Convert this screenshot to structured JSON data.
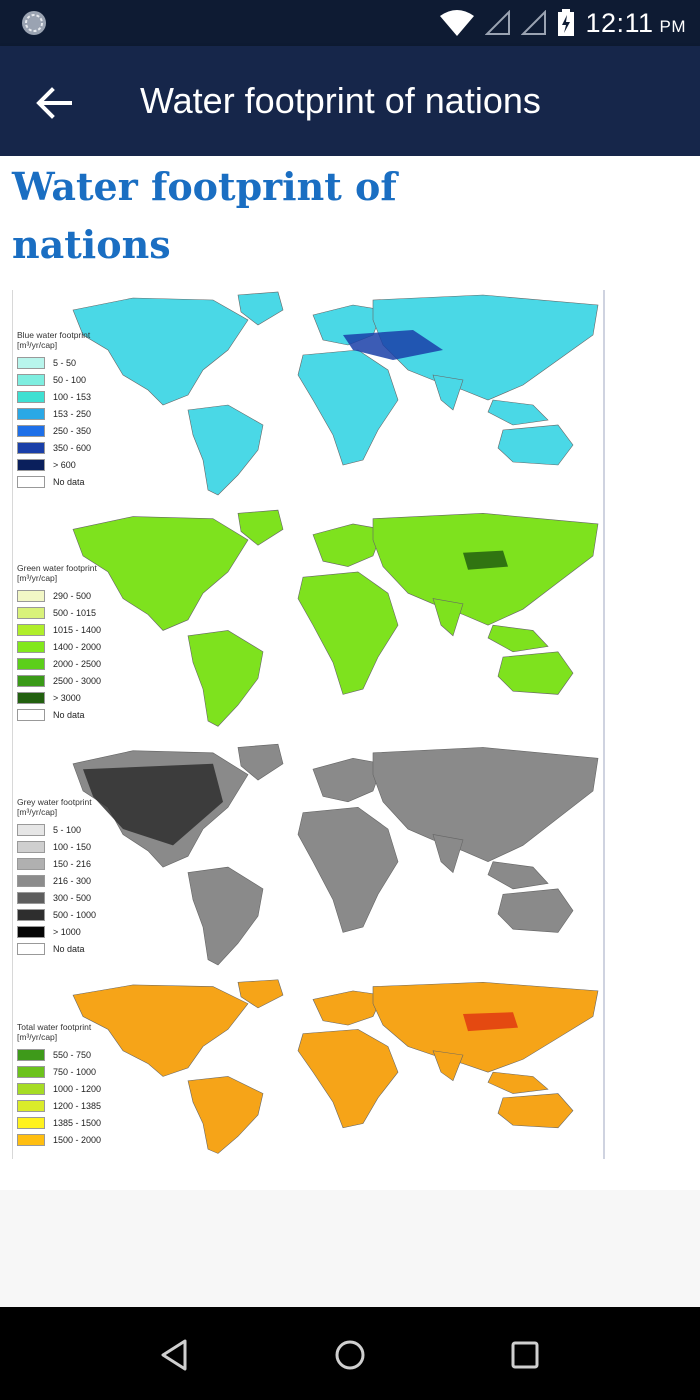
{
  "status_bar": {
    "time": "12:11",
    "ampm": "PM",
    "icons": [
      "sync-icon",
      "wifi-icon",
      "signal-icon",
      "signal-icon",
      "battery-charging-icon"
    ]
  },
  "app_bar": {
    "title": "Water footprint of nations",
    "back_icon": "arrow-left-icon"
  },
  "article": {
    "title": "Water footprint of nations"
  },
  "figure": {
    "panels": [
      {
        "title": "Blue water footprint",
        "unit": "[m³/yr/cap]",
        "legend": [
          {
            "label": "5 - 50",
            "color": "#b8f5ec"
          },
          {
            "label": "50 - 100",
            "color": "#7eeee0"
          },
          {
            "label": "100 - 153",
            "color": "#3ee0d2"
          },
          {
            "label": "153 - 250",
            "color": "#2aa8e6"
          },
          {
            "label": "250 - 350",
            "color": "#1e6fe8"
          },
          {
            "label": "350 - 600",
            "color": "#1a3fa8"
          },
          {
            "label": "> 600",
            "color": "#0a1f5c"
          },
          {
            "label": "No data",
            "color": "#ffffff"
          }
        ],
        "land_color": "#4ad8e6"
      },
      {
        "title": "Green water footprint",
        "unit": "[m³/yr/cap]",
        "legend": [
          {
            "label": "290 - 500",
            "color": "#f2f7c6"
          },
          {
            "label": "500 - 1015",
            "color": "#d9f27a"
          },
          {
            "label": "1015 - 1400",
            "color": "#b0ee2a"
          },
          {
            "label": "1400 - 2000",
            "color": "#82e81c"
          },
          {
            "label": "2000 - 2500",
            "color": "#5ccf1a"
          },
          {
            "label": "2500 - 3000",
            "color": "#3a9a18"
          },
          {
            "label": "> 3000",
            "color": "#22600f"
          },
          {
            "label": "No data",
            "color": "#ffffff"
          }
        ],
        "land_color": "#7ee21e"
      },
      {
        "title": "Grey water footprint",
        "unit": "[m³/yr/cap]",
        "legend": [
          {
            "label": "5 - 100",
            "color": "#e6e6e6"
          },
          {
            "label": "100 - 150",
            "color": "#cfcfcf"
          },
          {
            "label": "150 - 216",
            "color": "#b0b0b0"
          },
          {
            "label": "216 - 300",
            "color": "#8c8c8c"
          },
          {
            "label": "300 - 500",
            "color": "#5e5e5e"
          },
          {
            "label": "500 - 1000",
            "color": "#2e2e2e"
          },
          {
            "label": "> 1000",
            "color": "#050505"
          },
          {
            "label": "No data",
            "color": "#ffffff"
          }
        ],
        "land_color": "#8a8a8a"
      },
      {
        "title": "Total water footprint",
        "unit": "[m³/yr/cap]",
        "legend": [
          {
            "label": "550 - 750",
            "color": "#3e9a1a"
          },
          {
            "label": "750 - 1000",
            "color": "#6cc21c"
          },
          {
            "label": "1000 - 1200",
            "color": "#a6dc24"
          },
          {
            "label": "1200 - 1385",
            "color": "#daec2a"
          },
          {
            "label": "1385 - 1500",
            "color": "#fff21e"
          },
          {
            "label": "1500 - 2000",
            "color": "#ffbe10"
          }
        ],
        "land_color": "#f6a418"
      }
    ]
  }
}
